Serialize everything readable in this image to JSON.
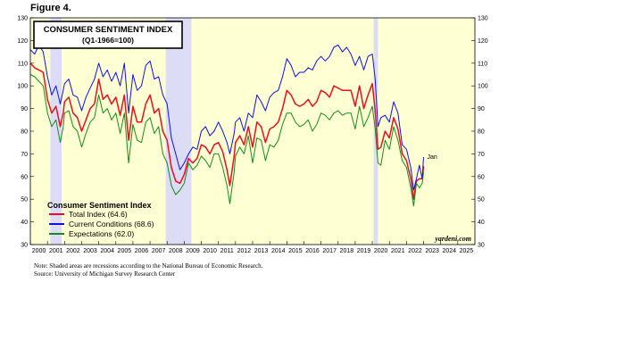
{
  "figure_label": "Figure 4.",
  "chart_data": {
    "type": "line",
    "title": "CONSUMER SENTIMENT INDEX",
    "subtitle": "(Q1-1966=100)",
    "x_tick_labels": [
      "2000",
      "2001",
      "2002",
      "2003",
      "2004",
      "2005",
      "2006",
      "2007",
      "2008",
      "2009",
      "2010",
      "2011",
      "2012",
      "2013",
      "2014",
      "2015",
      "2016",
      "2017",
      "2018",
      "2019",
      "2020",
      "2021",
      "2022",
      "2023",
      "2024",
      "2025"
    ],
    "xlim": [
      2000.0,
      2026.0
    ],
    "ylim": [
      30,
      130
    ],
    "y_ticks": [
      30,
      40,
      50,
      60,
      70,
      80,
      90,
      100,
      110,
      120,
      130
    ],
    "recessions": [
      [
        2001.17,
        2001.83
      ],
      [
        2007.92,
        2009.42
      ],
      [
        2020.08,
        2020.33
      ]
    ],
    "legend_title": "Consumer Sentiment Index",
    "legend_position": "bottom-left",
    "annotation": "Jan",
    "watermark": "yardeni.com",
    "series": [
      {
        "name": "Total Index (64.6)",
        "color": "#e8101e",
        "points": [
          [
            2000.0,
            110
          ],
          [
            2000.25,
            108
          ],
          [
            2000.5,
            107
          ],
          [
            2000.75,
            106
          ],
          [
            2001.0,
            94
          ],
          [
            2001.25,
            88
          ],
          [
            2001.5,
            91
          ],
          [
            2001.75,
            82
          ],
          [
            2001.92,
            88
          ],
          [
            2002.0,
            93
          ],
          [
            2002.25,
            95
          ],
          [
            2002.5,
            88
          ],
          [
            2002.75,
            86
          ],
          [
            2003.0,
            80
          ],
          [
            2003.25,
            85
          ],
          [
            2003.5,
            90
          ],
          [
            2003.75,
            92
          ],
          [
            2004.0,
            103
          ],
          [
            2004.25,
            94
          ],
          [
            2004.5,
            96
          ],
          [
            2004.75,
            92
          ],
          [
            2005.0,
            95
          ],
          [
            2005.25,
            87
          ],
          [
            2005.5,
            96
          ],
          [
            2005.75,
            76
          ],
          [
            2006.0,
            91
          ],
          [
            2006.25,
            84
          ],
          [
            2006.5,
            84
          ],
          [
            2006.75,
            92
          ],
          [
            2007.0,
            96
          ],
          [
            2007.25,
            88
          ],
          [
            2007.5,
            90
          ],
          [
            2007.75,
            80
          ],
          [
            2008.0,
            76
          ],
          [
            2008.25,
            64
          ],
          [
            2008.5,
            58
          ],
          [
            2008.75,
            57
          ],
          [
            2009.0,
            61
          ],
          [
            2009.25,
            68
          ],
          [
            2009.5,
            66
          ],
          [
            2009.75,
            68
          ],
          [
            2010.0,
            74
          ],
          [
            2010.25,
            73
          ],
          [
            2010.5,
            70
          ],
          [
            2010.75,
            74
          ],
          [
            2011.0,
            75
          ],
          [
            2011.25,
            71
          ],
          [
            2011.5,
            63
          ],
          [
            2011.67,
            56
          ],
          [
            2011.92,
            69
          ],
          [
            2012.0,
            75
          ],
          [
            2012.25,
            78
          ],
          [
            2012.5,
            74
          ],
          [
            2012.75,
            82
          ],
          [
            2013.0,
            73
          ],
          [
            2013.25,
            84
          ],
          [
            2013.5,
            82
          ],
          [
            2013.75,
            75
          ],
          [
            2014.0,
            81
          ],
          [
            2014.25,
            82
          ],
          [
            2014.5,
            84
          ],
          [
            2014.75,
            90
          ],
          [
            2015.0,
            98
          ],
          [
            2015.25,
            96
          ],
          [
            2015.5,
            92
          ],
          [
            2015.75,
            91
          ],
          [
            2016.0,
            92
          ],
          [
            2016.25,
            94
          ],
          [
            2016.5,
            91
          ],
          [
            2016.75,
            93
          ],
          [
            2017.0,
            98
          ],
          [
            2017.25,
            97
          ],
          [
            2017.5,
            95
          ],
          [
            2017.75,
            100
          ],
          [
            2018.0,
            99
          ],
          [
            2018.25,
            98
          ],
          [
            2018.5,
            98
          ],
          [
            2018.75,
            98
          ],
          [
            2019.0,
            91
          ],
          [
            2019.25,
            100
          ],
          [
            2019.5,
            90
          ],
          [
            2019.75,
            96
          ],
          [
            2020.0,
            101
          ],
          [
            2020.17,
            89
          ],
          [
            2020.33,
            72
          ],
          [
            2020.5,
            73
          ],
          [
            2020.75,
            80
          ],
          [
            2021.0,
            77
          ],
          [
            2021.25,
            86
          ],
          [
            2021.5,
            81
          ],
          [
            2021.75,
            70
          ],
          [
            2022.0,
            67
          ],
          [
            2022.25,
            59
          ],
          [
            2022.42,
            50
          ],
          [
            2022.58,
            58
          ],
          [
            2022.75,
            59
          ],
          [
            2022.92,
            59
          ],
          [
            2023.0,
            64.6
          ]
        ]
      },
      {
        "name": "Current Conditions (68.6)",
        "color": "#1010e6",
        "points": [
          [
            2000.0,
            116
          ],
          [
            2000.25,
            114
          ],
          [
            2000.5,
            118
          ],
          [
            2000.75,
            115
          ],
          [
            2001.0,
            104
          ],
          [
            2001.25,
            96
          ],
          [
            2001.5,
            100
          ],
          [
            2001.75,
            92
          ],
          [
            2001.92,
            98
          ],
          [
            2002.0,
            101
          ],
          [
            2002.25,
            103
          ],
          [
            2002.5,
            96
          ],
          [
            2002.75,
            95
          ],
          [
            2003.0,
            89
          ],
          [
            2003.25,
            95
          ],
          [
            2003.5,
            99
          ],
          [
            2003.75,
            103
          ],
          [
            2004.0,
            110
          ],
          [
            2004.25,
            104
          ],
          [
            2004.5,
            107
          ],
          [
            2004.75,
            102
          ],
          [
            2005.0,
            106
          ],
          [
            2005.25,
            100
          ],
          [
            2005.5,
            110
          ],
          [
            2005.75,
            88
          ],
          [
            2006.0,
            105
          ],
          [
            2006.25,
            98
          ],
          [
            2006.5,
            100
          ],
          [
            2006.75,
            109
          ],
          [
            2007.0,
            111
          ],
          [
            2007.25,
            103
          ],
          [
            2007.5,
            104
          ],
          [
            2007.75,
            96
          ],
          [
            2008.0,
            92
          ],
          [
            2008.25,
            77
          ],
          [
            2008.5,
            70
          ],
          [
            2008.75,
            63
          ],
          [
            2009.0,
            66
          ],
          [
            2009.25,
            70
          ],
          [
            2009.5,
            73
          ],
          [
            2009.75,
            72
          ],
          [
            2010.0,
            80
          ],
          [
            2010.25,
            82
          ],
          [
            2010.5,
            78
          ],
          [
            2010.75,
            80
          ],
          [
            2011.0,
            84
          ],
          [
            2011.25,
            80
          ],
          [
            2011.5,
            75
          ],
          [
            2011.67,
            70
          ],
          [
            2011.92,
            79
          ],
          [
            2012.0,
            84
          ],
          [
            2012.25,
            86
          ],
          [
            2012.5,
            80
          ],
          [
            2012.75,
            88
          ],
          [
            2013.0,
            86
          ],
          [
            2013.25,
            96
          ],
          [
            2013.5,
            93
          ],
          [
            2013.75,
            89
          ],
          [
            2014.0,
            95
          ],
          [
            2014.25,
            97
          ],
          [
            2014.5,
            98
          ],
          [
            2014.75,
            104
          ],
          [
            2015.0,
            112
          ],
          [
            2015.25,
            109
          ],
          [
            2015.5,
            104
          ],
          [
            2015.75,
            106
          ],
          [
            2016.0,
            106
          ],
          [
            2016.25,
            108
          ],
          [
            2016.5,
            107
          ],
          [
            2016.75,
            111
          ],
          [
            2017.0,
            113
          ],
          [
            2017.25,
            111
          ],
          [
            2017.5,
            113
          ],
          [
            2017.75,
            117
          ],
          [
            2018.0,
            118
          ],
          [
            2018.25,
            115
          ],
          [
            2018.5,
            117
          ],
          [
            2018.75,
            114
          ],
          [
            2019.0,
            109
          ],
          [
            2019.25,
            113
          ],
          [
            2019.5,
            107
          ],
          [
            2019.75,
            113
          ],
          [
            2020.0,
            114
          ],
          [
            2020.17,
            103
          ],
          [
            2020.33,
            82
          ],
          [
            2020.5,
            86
          ],
          [
            2020.75,
            87
          ],
          [
            2021.0,
            84
          ],
          [
            2021.25,
            93
          ],
          [
            2021.5,
            88
          ],
          [
            2021.75,
            74
          ],
          [
            2022.0,
            72
          ],
          [
            2022.25,
            64
          ],
          [
            2022.42,
            54
          ],
          [
            2022.58,
            59
          ],
          [
            2022.75,
            65
          ],
          [
            2022.92,
            59
          ],
          [
            2023.0,
            68.6
          ]
        ]
      },
      {
        "name": "Expectations (62.0)",
        "color": "#178a17",
        "points": [
          [
            2000.0,
            105
          ],
          [
            2000.25,
            104
          ],
          [
            2000.5,
            102
          ],
          [
            2000.75,
            100
          ],
          [
            2001.0,
            88
          ],
          [
            2001.25,
            82
          ],
          [
            2001.5,
            85
          ],
          [
            2001.75,
            75
          ],
          [
            2001.92,
            82
          ],
          [
            2002.0,
            88
          ],
          [
            2002.25,
            89
          ],
          [
            2002.5,
            82
          ],
          [
            2002.75,
            80
          ],
          [
            2003.0,
            73
          ],
          [
            2003.25,
            79
          ],
          [
            2003.5,
            84
          ],
          [
            2003.75,
            86
          ],
          [
            2004.0,
            96
          ],
          [
            2004.25,
            88
          ],
          [
            2004.5,
            90
          ],
          [
            2004.75,
            85
          ],
          [
            2005.0,
            88
          ],
          [
            2005.25,
            79
          ],
          [
            2005.5,
            88
          ],
          [
            2005.75,
            66
          ],
          [
            2006.0,
            83
          ],
          [
            2006.25,
            76
          ],
          [
            2006.5,
            75
          ],
          [
            2006.75,
            84
          ],
          [
            2007.0,
            86
          ],
          [
            2007.25,
            79
          ],
          [
            2007.5,
            82
          ],
          [
            2007.75,
            70
          ],
          [
            2008.0,
            66
          ],
          [
            2008.25,
            56
          ],
          [
            2008.5,
            52
          ],
          [
            2008.75,
            54
          ],
          [
            2009.0,
            57
          ],
          [
            2009.25,
            66
          ],
          [
            2009.5,
            63
          ],
          [
            2009.75,
            65
          ],
          [
            2010.0,
            69
          ],
          [
            2010.25,
            67
          ],
          [
            2010.5,
            64
          ],
          [
            2010.75,
            70
          ],
          [
            2011.0,
            70
          ],
          [
            2011.25,
            64
          ],
          [
            2011.5,
            56
          ],
          [
            2011.67,
            48
          ],
          [
            2011.92,
            62
          ],
          [
            2012.0,
            69
          ],
          [
            2012.25,
            73
          ],
          [
            2012.5,
            70
          ],
          [
            2012.75,
            78
          ],
          [
            2013.0,
            66
          ],
          [
            2013.25,
            77
          ],
          [
            2013.5,
            76
          ],
          [
            2013.75,
            67
          ],
          [
            2014.0,
            74
          ],
          [
            2014.25,
            73
          ],
          [
            2014.5,
            76
          ],
          [
            2014.75,
            83
          ],
          [
            2015.0,
            88
          ],
          [
            2015.25,
            88
          ],
          [
            2015.5,
            84
          ],
          [
            2015.75,
            82
          ],
          [
            2016.0,
            83
          ],
          [
            2016.25,
            85
          ],
          [
            2016.5,
            80
          ],
          [
            2016.75,
            83
          ],
          [
            2017.0,
            88
          ],
          [
            2017.25,
            87
          ],
          [
            2017.5,
            85
          ],
          [
            2017.75,
            88
          ],
          [
            2018.0,
            89
          ],
          [
            2018.25,
            87
          ],
          [
            2018.5,
            88
          ],
          [
            2018.75,
            88
          ],
          [
            2019.0,
            81
          ],
          [
            2019.25,
            91
          ],
          [
            2019.5,
            82
          ],
          [
            2019.75,
            86
          ],
          [
            2020.0,
            91
          ],
          [
            2020.17,
            81
          ],
          [
            2020.33,
            66
          ],
          [
            2020.5,
            65
          ],
          [
            2020.75,
            76
          ],
          [
            2021.0,
            72
          ],
          [
            2021.25,
            82
          ],
          [
            2021.5,
            76
          ],
          [
            2021.75,
            67
          ],
          [
            2022.0,
            64
          ],
          [
            2022.25,
            55
          ],
          [
            2022.42,
            47
          ],
          [
            2022.58,
            57
          ],
          [
            2022.75,
            55
          ],
          [
            2022.92,
            57
          ],
          [
            2023.0,
            62.0
          ]
        ]
      }
    ]
  },
  "notes": [
    "Note: Shaded areas are recessions according to the National Bureau of Economic Research.",
    "Source: University of Michigan Survey Research Center"
  ],
  "colors": {
    "plot_background": "#ffffd4",
    "recession_shade": "#dcdcf7"
  }
}
